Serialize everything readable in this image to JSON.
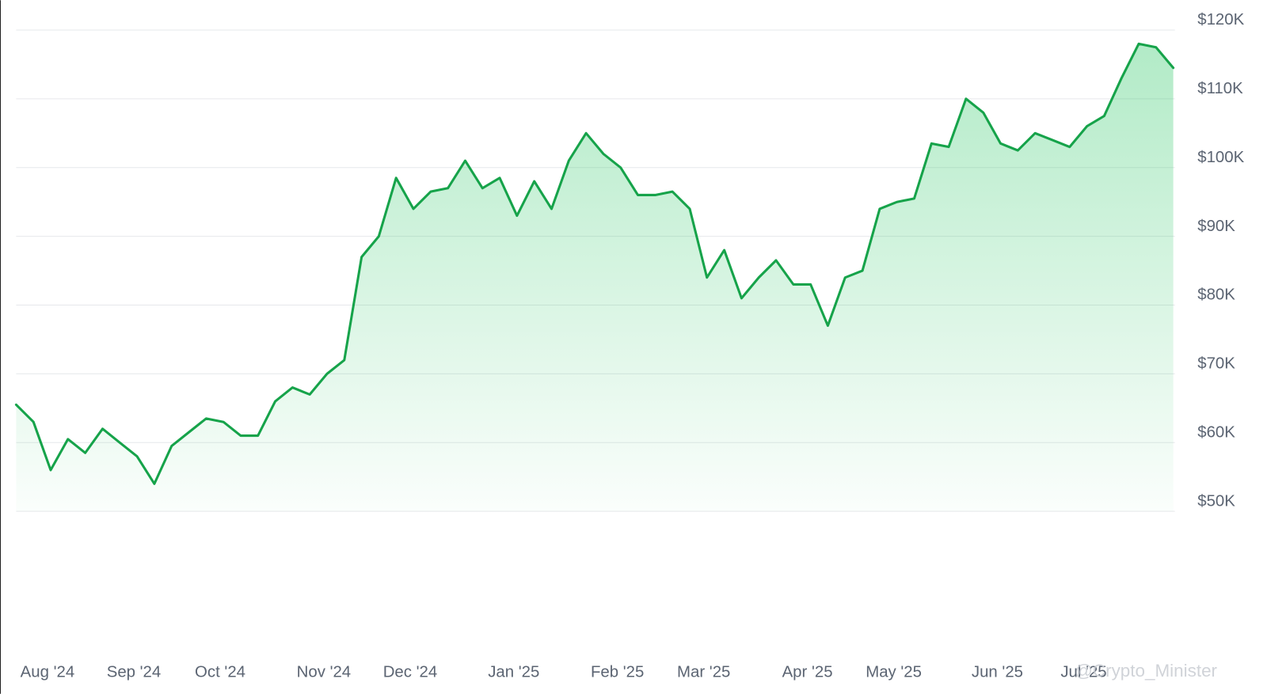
{
  "chart_data": {
    "type": "line",
    "categories": [
      null,
      null,
      "Aug '24",
      null,
      null,
      null,
      null,
      "Sep '24",
      null,
      null,
      null,
      null,
      "Oct '24",
      null,
      null,
      null,
      null,
      null,
      "Nov '24",
      null,
      null,
      null,
      null,
      "Dec '24",
      null,
      null,
      null,
      null,
      null,
      "Jan '25",
      null,
      null,
      null,
      null,
      null,
      "Feb '25",
      null,
      null,
      null,
      null,
      "Mar '25",
      null,
      null,
      null,
      null,
      null,
      "Apr '25",
      null,
      null,
      null,
      null,
      "May '25",
      null,
      null,
      null,
      null,
      null,
      "Jun '25",
      null,
      null,
      null,
      null,
      "Jul '25",
      null,
      null,
      null,
      null,
      null
    ],
    "series": [
      {
        "color": "#16a34a",
        "values": [
          65500,
          63000,
          56000,
          60500,
          58500,
          62000,
          60000,
          58000,
          54000,
          59500,
          61500,
          63500,
          63000,
          61000,
          61000,
          66000,
          68000,
          67000,
          70000,
          72000,
          87000,
          90000,
          98500,
          94000,
          96500,
          97000,
          101000,
          97000,
          98500,
          93000,
          98000,
          94000,
          101000,
          105000,
          102000,
          100000,
          96000,
          96000,
          96500,
          94000,
          84000,
          88000,
          81000,
          84000,
          86500,
          83000,
          83000,
          77000,
          84000,
          85000,
          94000,
          95000,
          95500,
          103500,
          103000,
          110000,
          108000,
          103500,
          102500,
          105000,
          104000,
          103000,
          106000,
          107500,
          113000,
          118000,
          117500,
          114500
        ]
      }
    ],
    "ylim": [
      50000,
      120000
    ],
    "yticks": [
      {
        "value": 50000,
        "label": "$50K"
      },
      {
        "value": 60000,
        "label": "$60K"
      },
      {
        "value": 70000,
        "label": "$70K"
      },
      {
        "value": 80000,
        "label": "$80K"
      },
      {
        "value": 90000,
        "label": "$90K"
      },
      {
        "value": 100000,
        "label": "$100K"
      },
      {
        "value": 110000,
        "label": "$110K"
      },
      {
        "value": 120000,
        "label": "$120K"
      }
    ],
    "grid": true,
    "watermark": "@Crypto_Minister"
  }
}
